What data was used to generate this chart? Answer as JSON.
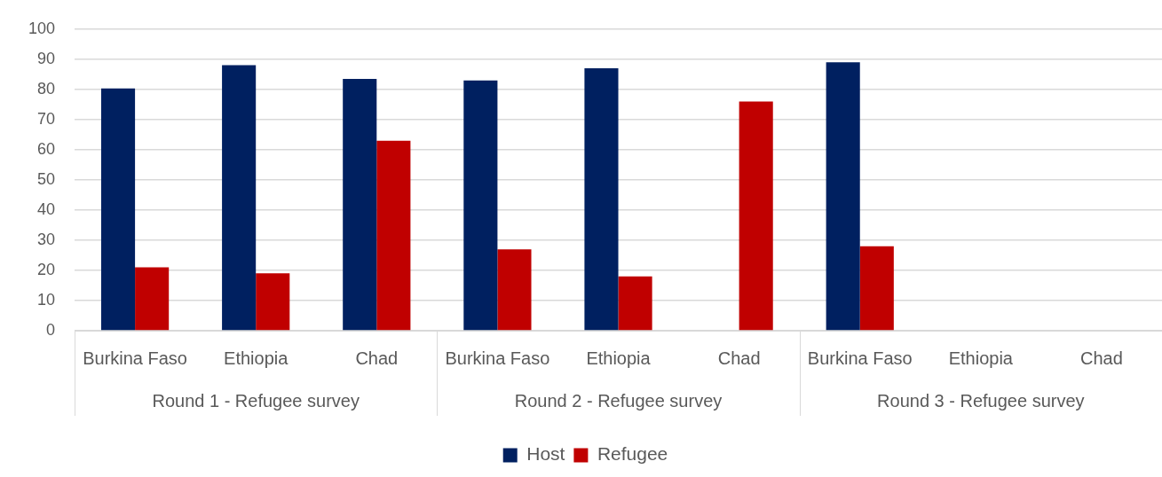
{
  "chart_data": {
    "type": "bar",
    "categories": [
      "Burkina Faso",
      "Ethiopia",
      "Chad",
      "Burkina Faso",
      "Ethiopia",
      "Chad",
      "Burkina Faso",
      "Ethiopia",
      "Chad"
    ],
    "series": [
      {
        "name": "Host",
        "color": "#002060",
        "values": [
          80.3,
          88,
          83.5,
          83,
          87,
          null,
          89,
          null,
          null
        ]
      },
      {
        "name": "Refugee",
        "color": "#c00000",
        "values": [
          21,
          19,
          63,
          27,
          18,
          76,
          28,
          null,
          null
        ]
      }
    ],
    "annotations": [
      "Round 1 - Refugee survey",
      "Round 2 - Refugee survey",
      "Round 3 - Refugee survey"
    ],
    "ylim": [
      0,
      100
    ],
    "yticks": [
      0,
      10,
      20,
      30,
      40,
      50,
      60,
      70,
      80,
      90,
      100
    ],
    "grid": "y",
    "legend": "bottom"
  }
}
